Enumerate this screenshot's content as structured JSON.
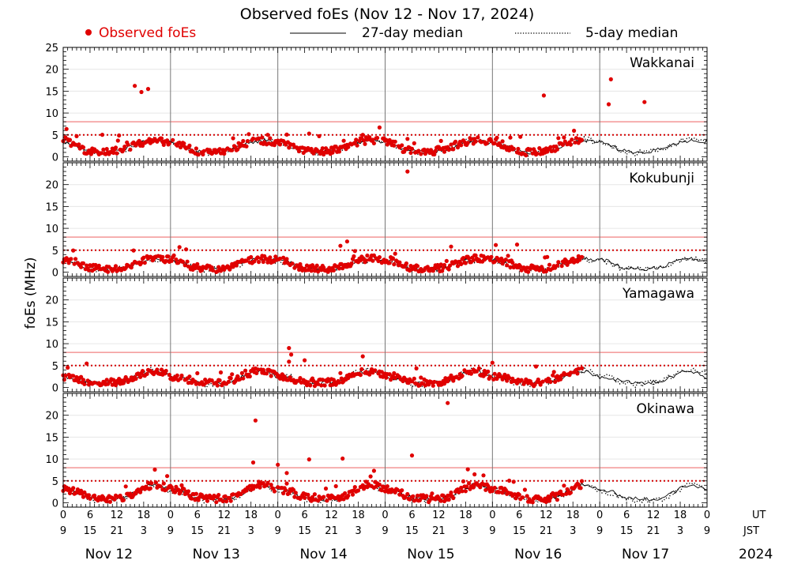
{
  "chart_data": {
    "type": "scatter",
    "title": "Observed foEs (Nov 12 - Nov 17, 2024)",
    "ylabel": "foEs (MHz)",
    "year": "2024",
    "legend": [
      {
        "name": "Observed foEs",
        "style": "red-dot",
        "color": "#e00000"
      },
      {
        "name": "27-day median",
        "style": "solid-line",
        "color": "#000000"
      },
      {
        "name": "5-day median",
        "style": "dotted-line",
        "color": "#000000"
      }
    ],
    "time_axis": {
      "hours_total": 144,
      "ut_ticks": [
        "0",
        "6",
        "12",
        "18",
        "0",
        "6",
        "12",
        "18",
        "0",
        "6",
        "12",
        "18",
        "0",
        "6",
        "12",
        "18",
        "0",
        "6",
        "12",
        "18",
        "0",
        "6",
        "12",
        "18",
        "0"
      ],
      "jst_ticks": [
        "9",
        "15",
        "21",
        "3",
        "9",
        "15",
        "21",
        "3",
        "9",
        "15",
        "21",
        "3",
        "9",
        "15",
        "21",
        "3",
        "9",
        "15",
        "21",
        "3",
        "9",
        "15",
        "21",
        "3",
        "9"
      ],
      "ut_label": "UT",
      "jst_label": "JST",
      "days": [
        "Nov 12",
        "Nov 13",
        "Nov 14",
        "Nov 15",
        "Nov 16",
        "Nov 17"
      ]
    },
    "thresholds": {
      "dotted_mhz": 5,
      "solid_mhz": 8
    },
    "observed_until_hour": 116,
    "panels": [
      {
        "station": "Wakkanai",
        "ylim": [
          -1,
          25
        ],
        "yticks": [
          "0",
          "5",
          "10",
          "15",
          "20",
          "25"
        ],
        "median27": [
          3.5,
          3.2,
          2.8,
          2.3,
          1.8,
          1.4,
          1.2,
          1.1,
          1.0,
          1.0,
          1.1,
          1.2,
          1.4,
          1.6,
          1.9,
          2.3,
          2.7,
          3.0,
          3.3,
          3.5,
          3.6,
          3.6,
          3.5,
          3.2
        ],
        "median5": [
          3.8,
          3.4,
          3.0,
          2.4,
          1.8,
          1.3,
          1.0,
          0.9,
          0.8,
          0.9,
          1.0,
          1.2,
          1.3,
          1.5,
          1.8,
          2.2,
          2.6,
          3.0,
          3.4,
          3.8,
          4.0,
          3.9,
          3.7,
          3.4
        ],
        "outliers": [
          [
            16,
            16.2
          ],
          [
            17.5,
            14.8
          ],
          [
            19,
            15.5
          ],
          [
            107.5,
            14.0
          ],
          [
            122.5,
            17.7
          ],
          [
            122,
            12.0
          ],
          [
            130,
            12.5
          ]
        ]
      },
      {
        "station": "Kokubunji",
        "ylim": [
          -1,
          25
        ],
        "yticks": [
          "0",
          "5",
          "10",
          "15",
          "20"
        ],
        "median27": [
          2.8,
          2.7,
          2.5,
          2.1,
          1.5,
          1.1,
          0.9,
          0.8,
          0.7,
          0.7,
          0.7,
          0.7,
          0.8,
          0.9,
          1.2,
          1.6,
          2.0,
          2.4,
          2.7,
          2.9,
          3.0,
          3.0,
          2.9,
          2.8
        ],
        "median5": [
          2.6,
          2.4,
          2.2,
          1.8,
          1.3,
          0.9,
          0.7,
          0.6,
          0.6,
          0.6,
          0.6,
          0.6,
          0.7,
          0.8,
          1.0,
          1.4,
          1.8,
          2.2,
          2.5,
          2.7,
          2.8,
          2.8,
          2.7,
          2.6
        ],
        "outliers": [
          [
            77,
            23.0
          ],
          [
            63.5,
            7.0
          ],
          [
            62,
            6.0
          ],
          [
            101.5,
            6.3
          ]
        ]
      },
      {
        "station": "Yamagawa",
        "ylim": [
          -1,
          25
        ],
        "yticks": [
          "0",
          "5",
          "10",
          "15",
          "20"
        ],
        "median27": [
          2.4,
          2.3,
          2.2,
          2.0,
          1.7,
          1.4,
          1.2,
          1.1,
          1.0,
          1.0,
          1.0,
          1.1,
          1.2,
          1.3,
          1.6,
          2.0,
          2.4,
          2.9,
          3.3,
          3.6,
          3.7,
          3.6,
          3.2,
          2.8
        ],
        "median5": [
          2.8,
          2.6,
          2.4,
          2.2,
          1.6,
          1.1,
          0.9,
          0.7,
          0.6,
          0.6,
          0.8,
          0.9,
          1.1,
          1.3,
          1.6,
          2.1,
          2.6,
          3.1,
          3.5,
          3.9,
          4.1,
          4.0,
          3.6,
          3.2
        ],
        "outliers": [
          [
            50.5,
            9.0
          ],
          [
            51,
            7.5
          ],
          [
            54,
            6.2
          ]
        ]
      },
      {
        "station": "Okinawa",
        "ylim": [
          -1,
          25
        ],
        "yticks": [
          "0",
          "5",
          "10",
          "15",
          "20"
        ],
        "median27": [
          3.0,
          2.9,
          2.7,
          2.4,
          1.9,
          1.5,
          1.2,
          1.0,
          0.9,
          0.8,
          0.8,
          0.8,
          0.9,
          1.0,
          1.2,
          1.6,
          2.1,
          2.7,
          3.3,
          3.8,
          4.1,
          4.1,
          3.8,
          3.4
        ],
        "median5": [
          2.7,
          2.6,
          2.4,
          2.1,
          1.6,
          1.2,
          0.9,
          0.7,
          0.6,
          0.5,
          0.5,
          0.6,
          0.7,
          0.8,
          1.0,
          1.4,
          1.9,
          2.5,
          3.1,
          3.6,
          3.9,
          3.9,
          3.6,
          3.1
        ],
        "outliers": [
          [
            43,
            18.8
          ],
          [
            42.5,
            9.2
          ],
          [
            48,
            8.7
          ],
          [
            55,
            9.9
          ],
          [
            62.5,
            10.1
          ],
          [
            86,
            22.8
          ],
          [
            50,
            6.8
          ],
          [
            69.5,
            7.3
          ],
          [
            78,
            10.8
          ],
          [
            92,
            6.5
          ]
        ]
      }
    ]
  }
}
